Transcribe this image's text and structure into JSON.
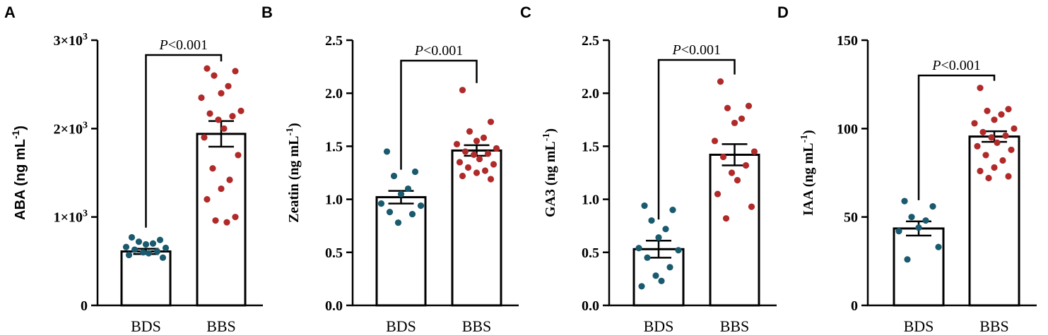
{
  "colors": {
    "BDS": "#1a5a6e",
    "BBS": "#b02a2a"
  },
  "chart_data": [
    {
      "panel": "A",
      "type": "bar",
      "ylabel": "ABA (ng mL",
      "ylabel_sup": "-1",
      "ylabel_tail": ")",
      "ylim": [
        0,
        3000
      ],
      "yticks": [
        0,
        1000,
        2000,
        3000
      ],
      "ytick_labels": [
        "0",
        "1×10³",
        "2×10³",
        "3×10³"
      ],
      "categories": [
        "BDS",
        "BBS"
      ],
      "means": [
        610,
        1940
      ],
      "errors": [
        30,
        145
      ],
      "points": [
        [
          770,
          740,
          720,
          700,
          690,
          660,
          650,
          630,
          610,
          600,
          590,
          570,
          540
        ],
        [
          2680,
          2650,
          2600,
          2480,
          2400,
          2350,
          2200,
          2170,
          2140,
          2100,
          2000,
          1900,
          1700,
          1550,
          1420,
          1320,
          1200,
          1000,
          960,
          940
        ]
      ],
      "pvalue_prefix": "P",
      "pvalue_suffix": "<0.001"
    },
    {
      "panel": "B",
      "type": "bar",
      "ylabel": "Zeatin (ng mL",
      "ylabel_sup": "-1",
      "ylabel_tail": ")",
      "ylim": [
        0,
        2.5
      ],
      "yticks": [
        0,
        0.5,
        1.0,
        1.5,
        2.0,
        2.5
      ],
      "ytick_labels": [
        "0.0",
        "0.5",
        "1.0",
        "1.5",
        "2.0",
        "2.5"
      ],
      "categories": [
        "BDS",
        "BBS"
      ],
      "means": [
        1.02,
        1.46
      ],
      "errors": [
        0.06,
        0.05
      ],
      "points": [
        [
          1.45,
          1.26,
          1.22,
          1.1,
          1.05,
          0.96,
          0.94,
          0.88,
          0.86,
          0.78
        ],
        [
          2.03,
          1.73,
          1.64,
          1.58,
          1.55,
          1.52,
          1.48,
          1.45,
          1.43,
          1.42,
          1.38,
          1.35,
          1.33,
          1.3,
          1.27,
          1.25,
          1.22,
          1.19
        ]
      ],
      "pvalue_prefix": "P",
      "pvalue_suffix": "<0.001"
    },
    {
      "panel": "C",
      "type": "bar",
      "ylabel": "GA3 (ng mL",
      "ylabel_sup": "-1",
      "ylabel_tail": ")",
      "ylim": [
        0,
        2.5
      ],
      "yticks": [
        0,
        0.5,
        1.0,
        1.5,
        2.0,
        2.5
      ],
      "ytick_labels": [
        "0.0",
        "0.5",
        "1.0",
        "1.5",
        "2.0",
        "2.5"
      ],
      "categories": [
        "BDS",
        "BBS"
      ],
      "means": [
        0.53,
        1.42
      ],
      "errors": [
        0.08,
        0.1
      ],
      "points": [
        [
          0.94,
          0.9,
          0.8,
          0.72,
          0.64,
          0.54,
          0.52,
          0.45,
          0.36,
          0.28,
          0.23,
          0.18
        ],
        [
          2.11,
          1.88,
          1.86,
          1.76,
          1.72,
          1.55,
          1.45,
          1.4,
          1.32,
          1.25,
          1.18,
          1.05,
          0.93,
          0.82
        ]
      ],
      "pvalue_prefix": "P",
      "pvalue_suffix": "<0.001"
    },
    {
      "panel": "D",
      "type": "bar",
      "ylabel": "IAA (ng mL",
      "ylabel_sup": "-1",
      "ylabel_tail": ")",
      "ylim": [
        0,
        150
      ],
      "yticks": [
        0,
        50,
        100,
        150
      ],
      "ytick_labels": [
        "0",
        "50",
        "100",
        "150"
      ],
      "categories": [
        "BDS",
        "BBS"
      ],
      "means": [
        43.5,
        95.5
      ],
      "errors": [
        4,
        3
      ],
      "points": [
        [
          59,
          56,
          50,
          48,
          44,
          42,
          33,
          26
        ],
        [
          123,
          111,
          110,
          108,
          105,
          103,
          100,
          98,
          96,
          95,
          92,
          90,
          88,
          85,
          82,
          78,
          76,
          73,
          72
        ]
      ],
      "pvalue_prefix": "P",
      "pvalue_suffix": "<0.001"
    }
  ]
}
